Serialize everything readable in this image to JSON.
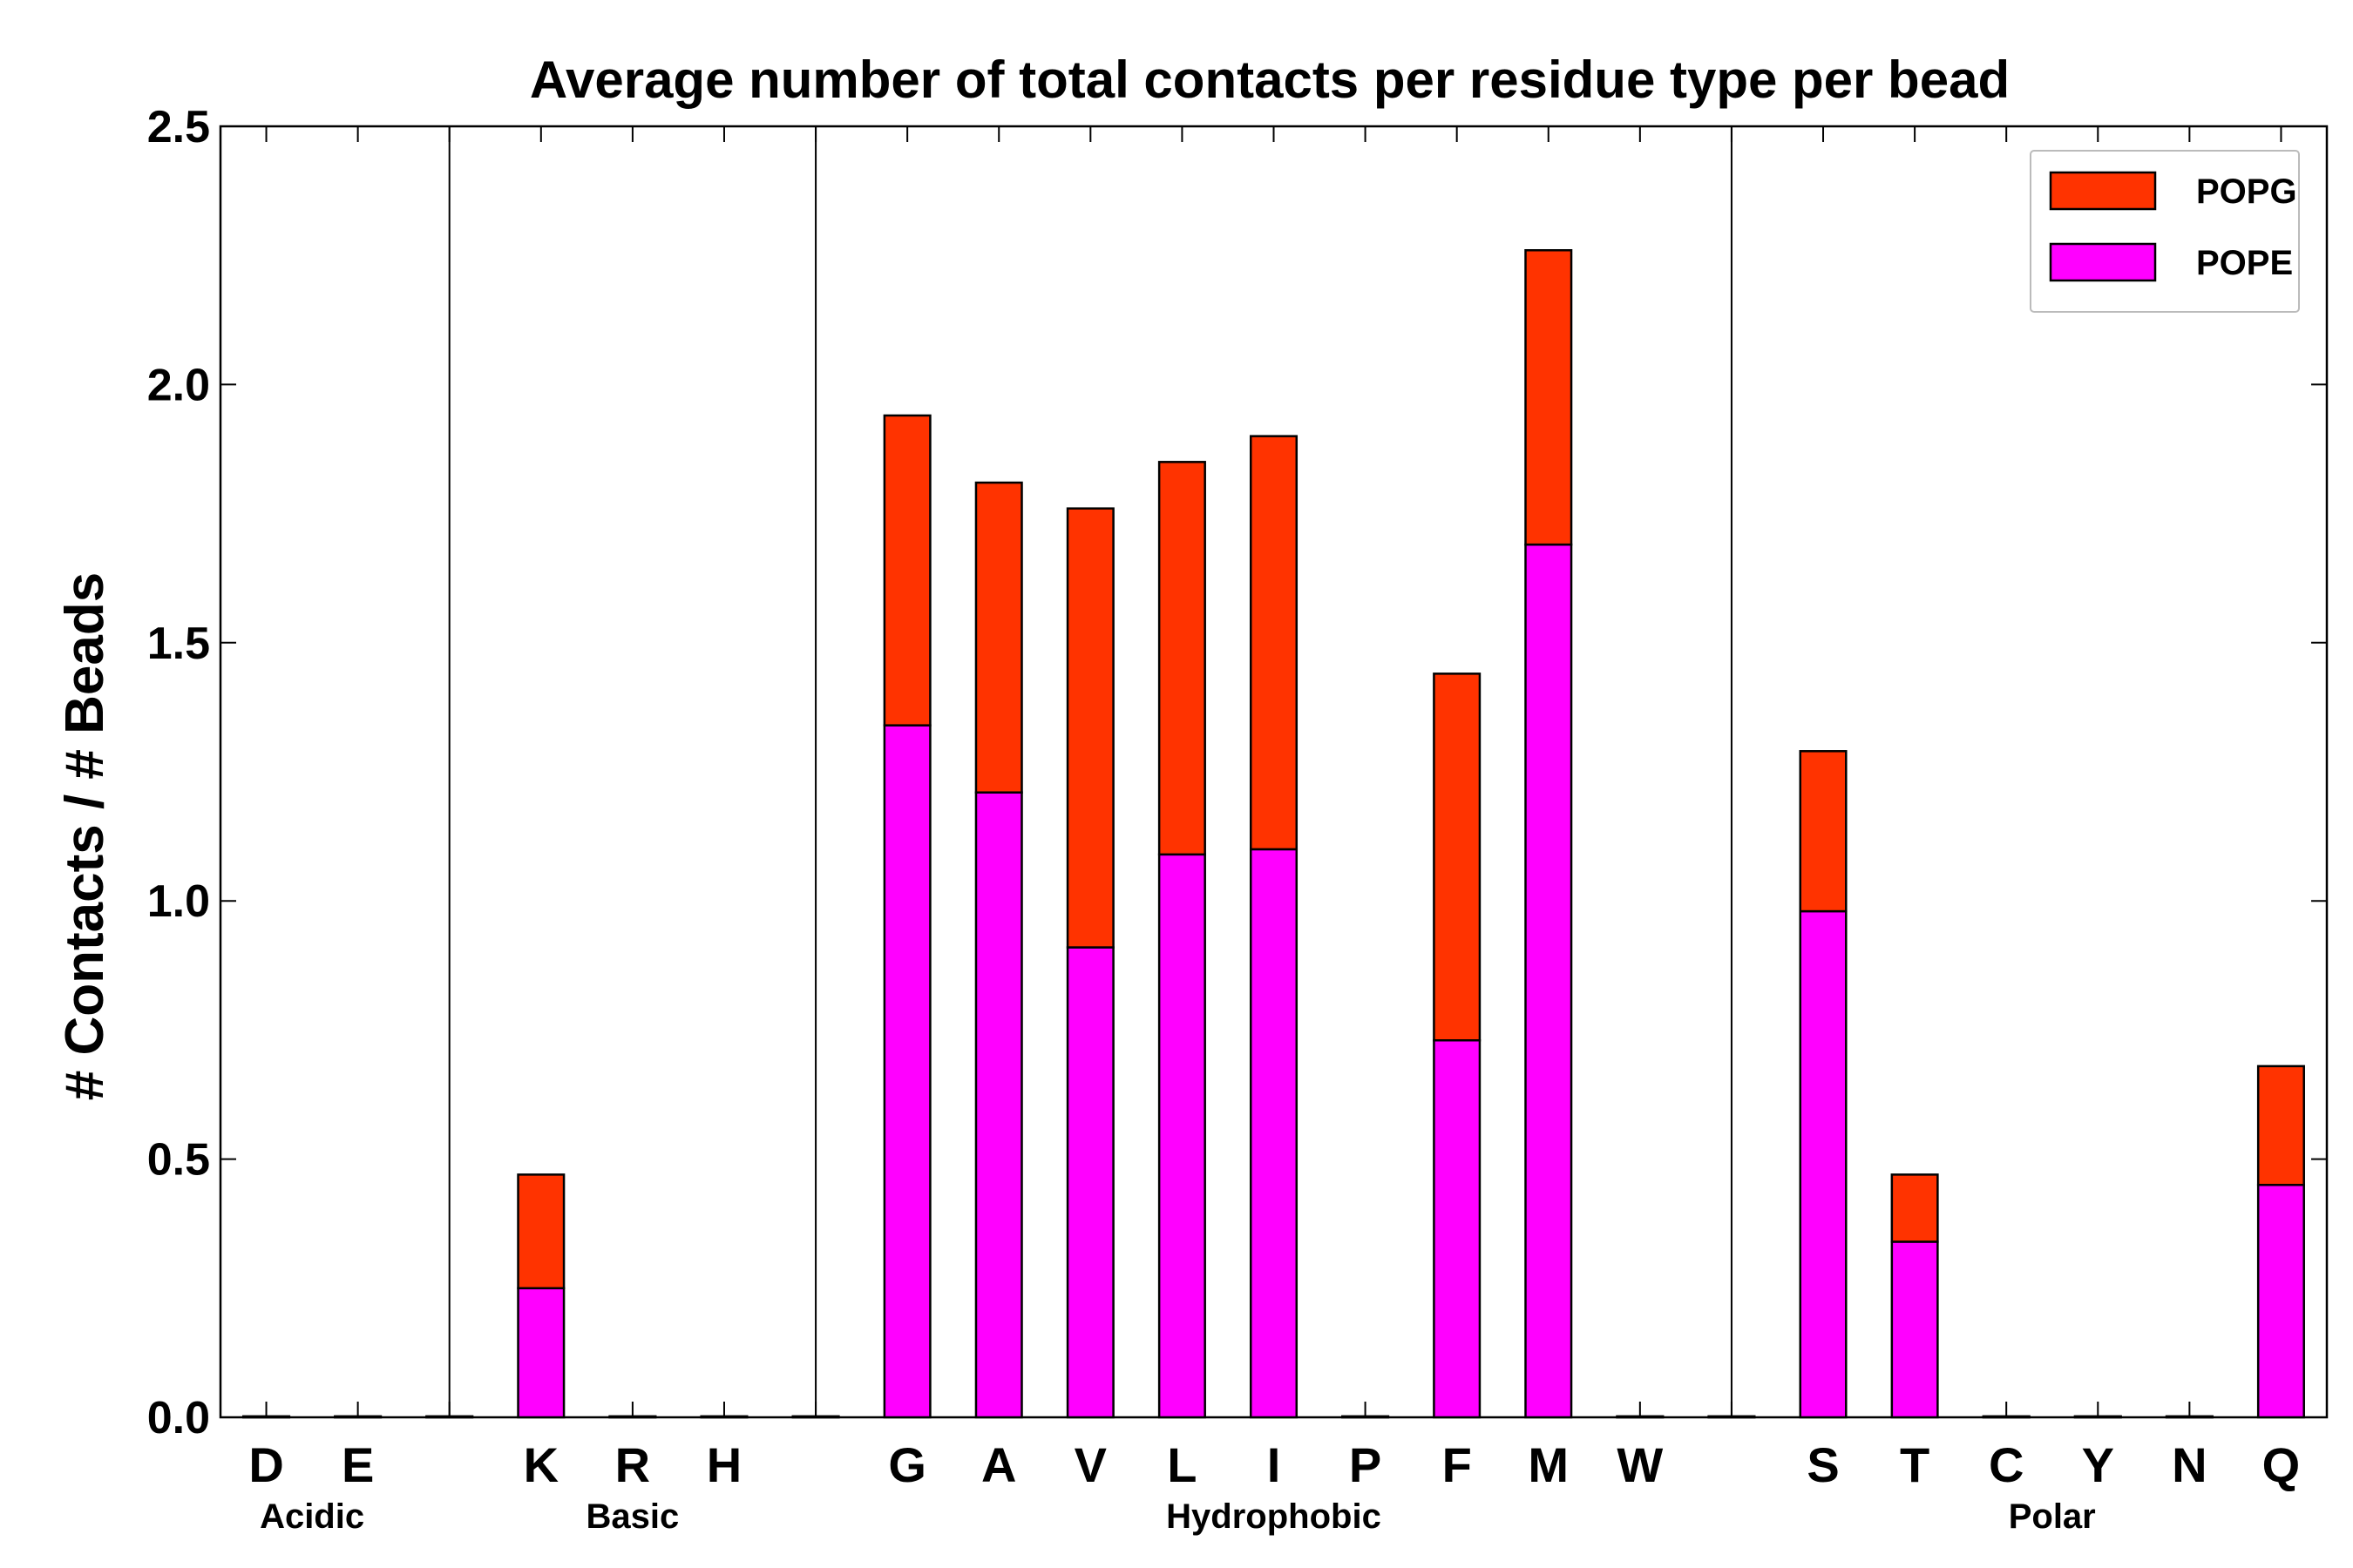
{
  "chart_data": {
    "type": "bar",
    "stacked": true,
    "title": "Average number of total contacts per residue type per bead",
    "xlabel": "",
    "ylabel": "# Contacts / # Beads",
    "ylim": [
      0,
      2.5
    ],
    "yticks": [
      "0.0",
      "0.5",
      "1.0",
      "1.5",
      "2.0",
      "2.5"
    ],
    "categories": [
      "D",
      "E",
      "",
      "K",
      "R",
      "H",
      "",
      "G",
      "A",
      "V",
      "L",
      "I",
      "P",
      "F",
      "M",
      "W",
      "",
      "S",
      "T",
      "C",
      "Y",
      "N",
      "Q"
    ],
    "series": [
      {
        "name": "POPE",
        "color": "#ff00ff",
        "values": [
          0,
          0,
          0,
          0.25,
          0,
          0,
          0,
          1.34,
          1.21,
          0.91,
          1.09,
          1.1,
          0,
          0.73,
          1.69,
          0,
          0,
          0.98,
          0.34,
          0,
          0,
          0,
          0.45
        ]
      },
      {
        "name": "POPG",
        "color": "#ff3300",
        "values": [
          0,
          0,
          0,
          0.22,
          0,
          0,
          0,
          0.6,
          0.6,
          0.85,
          0.76,
          0.8,
          0,
          0.71,
          0.57,
          0,
          0,
          0.31,
          0.13,
          0,
          0,
          0,
          0.23
        ]
      }
    ],
    "group_separators_after_index": [
      2,
      6,
      16
    ],
    "groups": [
      {
        "label": "Acidic",
        "center_index": 0.5
      },
      {
        "label": "Basic",
        "center_index": 4
      },
      {
        "label": "Hydrophobic",
        "center_index": 11
      },
      {
        "label": "Polar",
        "center_index": 19.5
      }
    ],
    "legend": {
      "position": "top-right",
      "entries": [
        "POPG",
        "POPE"
      ]
    },
    "grid": false
  }
}
